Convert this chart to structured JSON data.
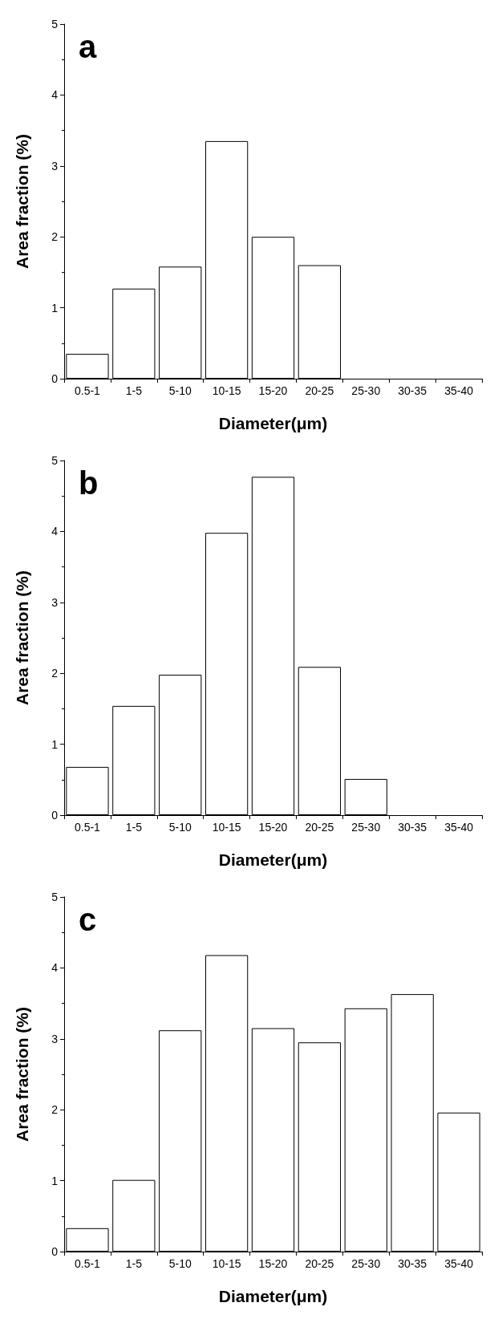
{
  "chart_data": [
    {
      "type": "bar",
      "title": "a",
      "xlabel": "Diameter(μm)",
      "ylabel": "Area fraction (%)",
      "categories": [
        "0.5-1",
        "1-5",
        "5-10",
        "10-15",
        "15-20",
        "20-25",
        "25-30",
        "30-35",
        "35-40"
      ],
      "values": [
        0.35,
        1.27,
        1.58,
        3.35,
        2.0,
        1.6,
        null,
        null,
        null
      ],
      "color": "#ffffff",
      "ylim": [
        0,
        5
      ],
      "yticks": [
        0,
        1,
        2,
        3,
        4,
        5
      ]
    },
    {
      "type": "bar",
      "title": "b",
      "xlabel": "Diameter(μm)",
      "ylabel": "Area fraction (%)",
      "categories": [
        "0.5-1",
        "1-5",
        "5-10",
        "10-15",
        "15-20",
        "20-25",
        "25-30",
        "30-35",
        "35-40"
      ],
      "values": [
        0.68,
        1.54,
        1.98,
        3.98,
        4.77,
        2.09,
        0.51,
        null,
        null
      ],
      "color": "#ffffff",
      "ylim": [
        0,
        5
      ],
      "yticks": [
        0,
        1,
        2,
        3,
        4,
        5
      ]
    },
    {
      "type": "bar",
      "title": "c",
      "xlabel": "Diameter(μm)",
      "ylabel": "Area fraction (%)",
      "categories": [
        "0.5-1",
        "1-5",
        "5-10",
        "10-15",
        "15-20",
        "20-25",
        "25-30",
        "30-35",
        "35-40"
      ],
      "values": [
        0.33,
        1.01,
        3.12,
        4.18,
        3.15,
        2.95,
        3.43,
        3.63,
        1.96
      ],
      "color": "#ffffff",
      "ylim": [
        0,
        5
      ],
      "yticks": [
        0,
        1,
        2,
        3,
        4,
        5
      ]
    }
  ]
}
